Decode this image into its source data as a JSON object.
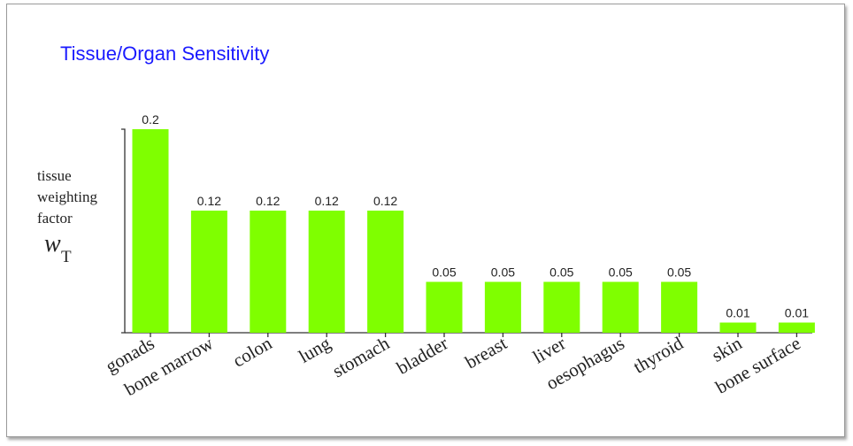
{
  "chart_data": {
    "type": "bar",
    "title": "Tissue/Organ Sensitivity",
    "ylabel_lines": [
      "tissue",
      "weighting",
      "factor"
    ],
    "ylabel_symbol": "w",
    "ylabel_subscript": "T",
    "categories": [
      "gonads",
      "bone marrow",
      "colon",
      "lung",
      "stomach",
      "bladder",
      "breast",
      "liver",
      "oesophagus",
      "thyroid",
      "skin",
      "bone surface"
    ],
    "values": [
      0.2,
      0.12,
      0.12,
      0.12,
      0.12,
      0.05,
      0.05,
      0.05,
      0.05,
      0.05,
      0.01,
      0.01
    ],
    "value_labels": [
      "0.2",
      "0.12",
      "0.12",
      "0.12",
      "0.12",
      "0.05",
      "0.05",
      "0.05",
      "0.05",
      "0.05",
      "0.01",
      "0.01"
    ],
    "ylim": [
      0,
      0.2
    ],
    "bar_color": "#7fff00",
    "title_color": "#1a1aff",
    "grid": false,
    "legend": "none"
  }
}
